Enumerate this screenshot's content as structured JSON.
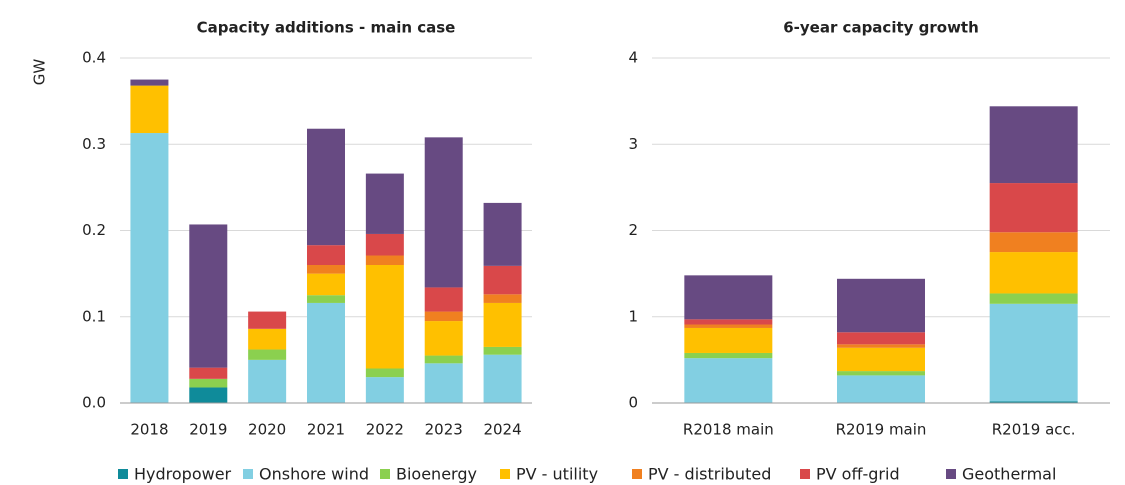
{
  "chart_data": [
    {
      "type": "bar",
      "stacked": true,
      "title": "Capacity additions - main case",
      "ylabel": "GW",
      "categories": [
        "2018",
        "2019",
        "2020",
        "2021",
        "2022",
        "2023",
        "2024"
      ],
      "ylim": [
        0,
        0.4
      ],
      "yticks": [
        {
          "value": 0,
          "label": "0.0"
        },
        0.1,
        0.2,
        0.3,
        0.4
      ],
      "grid": true,
      "series": [
        {
          "name": "Hydropower",
          "color": "#0f8b9a",
          "values": [
            0,
            0.018,
            0,
            0,
            0,
            0,
            0
          ]
        },
        {
          "name": "Onshore wind",
          "color": "#82cfe2",
          "values": [
            0.313,
            0,
            0.05,
            0.116,
            0.03,
            0.046,
            0.056
          ]
        },
        {
          "name": "Bioenergy",
          "color": "#8bd04f",
          "values": [
            0,
            0.01,
            0.012,
            0.009,
            0.01,
            0.009,
            0.009
          ]
        },
        {
          "name": "PV - utility",
          "color": "#ffc000",
          "values": [
            0.055,
            0,
            0.024,
            0.025,
            0.12,
            0.04,
            0.051
          ]
        },
        {
          "name": "PV - distributed",
          "color": "#f08020",
          "values": [
            0,
            0,
            0,
            0.01,
            0.011,
            0.011,
            0.01
          ]
        },
        {
          "name": "PV off-grid",
          "color": "#d9484a",
          "values": [
            0,
            0.013,
            0.02,
            0.023,
            0.025,
            0.028,
            0.033
          ]
        },
        {
          "name": "Geothermal",
          "color": "#674a82",
          "values": [
            0.007,
            0.166,
            0,
            0.135,
            0.07,
            0.174,
            0.073
          ]
        }
      ]
    },
    {
      "type": "bar",
      "stacked": true,
      "title": "6-year capacity growth",
      "categories": [
        "R2018 main",
        "R2019 main",
        "R2019 acc."
      ],
      "ylim": [
        0,
        4
      ],
      "yticks": [
        0,
        1,
        2,
        3,
        4
      ],
      "grid": true,
      "series": [
        {
          "values": [
            0,
            0,
            0.02
          ]
        },
        {
          "values": [
            0.52,
            0.32,
            1.13
          ]
        },
        {
          "values": [
            0.06,
            0.05,
            0.12
          ]
        },
        {
          "values": [
            0.29,
            0.27,
            0.48
          ]
        },
        {
          "values": [
            0.04,
            0.04,
            0.23
          ]
        },
        {
          "values": [
            0.06,
            0.14,
            0.57
          ]
        },
        {
          "values": [
            0.51,
            0.62,
            0.89
          ]
        }
      ]
    }
  ]
}
